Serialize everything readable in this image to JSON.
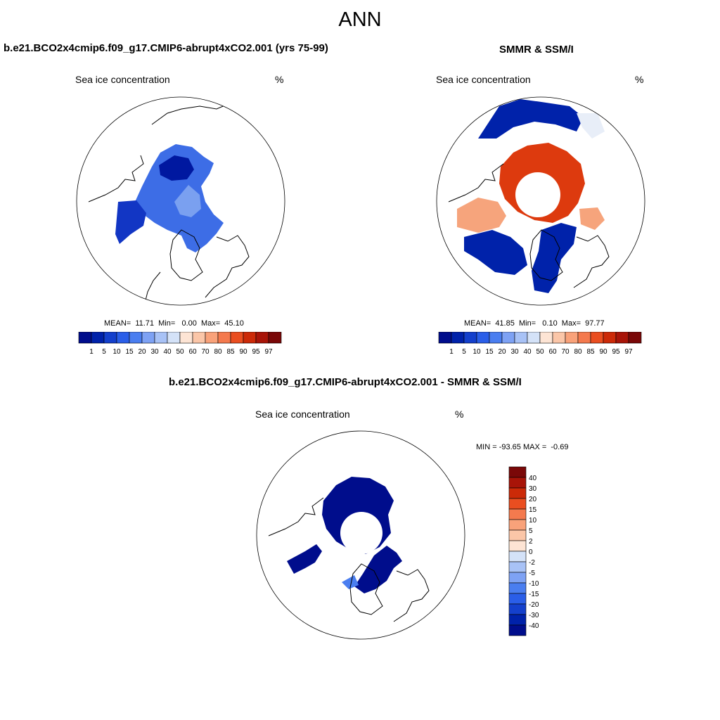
{
  "title": "ANN",
  "panels": [
    {
      "title": "b.e21.BCO2x4cmip6.f09_g17.CMIP6-abrupt4xCO2.001 (yrs 75-99)",
      "variable": "Sea ice concentration",
      "units": "%",
      "stats": "MEAN=  11.71  Min=   0.00  Max=  45.10"
    },
    {
      "title": "SMMR & SSM/I",
      "variable": "Sea ice concentration",
      "units": "%",
      "stats": "MEAN=  41.85  Min=   0.10  Max=  97.77"
    },
    {
      "title": "b.e21.BCO2x4cmip6.f09_g17.CMIP6-abrupt4xCO2.001 - SMMR & SSM/I",
      "variable": "Sea ice concentration",
      "units": "%",
      "stats": "MIN = -93.65 MAX =  -0.69"
    }
  ],
  "colorbar_abs": {
    "labels": [
      "1",
      "5",
      "10",
      "15",
      "20",
      "30",
      "40",
      "50",
      "60",
      "70",
      "80",
      "85",
      "90",
      "95",
      "97"
    ],
    "colors": [
      "#000d8c",
      "#0022aa",
      "#1440cc",
      "#2a5ee8",
      "#4a7ef0",
      "#7ea2f4",
      "#a8c2f6",
      "#d4e2f8",
      "#fde4d4",
      "#fbc6a8",
      "#f9a27a",
      "#f47a4e",
      "#ea4e20",
      "#cc2a08",
      "#a81408",
      "#7a0808"
    ]
  },
  "colorbar_diff": {
    "labels": [
      "40",
      "30",
      "20",
      "15",
      "10",
      "5",
      "2",
      "0",
      "-2",
      "-5",
      "-10",
      "-15",
      "-20",
      "-30",
      "-40"
    ],
    "colors": [
      "#7a0808",
      "#a81408",
      "#cc2a08",
      "#ea4e20",
      "#f47a4e",
      "#f9a27a",
      "#fbc6a8",
      "#fde4d4",
      "#d4e2f8",
      "#a8c2f6",
      "#7ea2f4",
      "#4a7ef0",
      "#2a5ee8",
      "#1440cc",
      "#0022aa",
      "#000d8c"
    ]
  }
}
